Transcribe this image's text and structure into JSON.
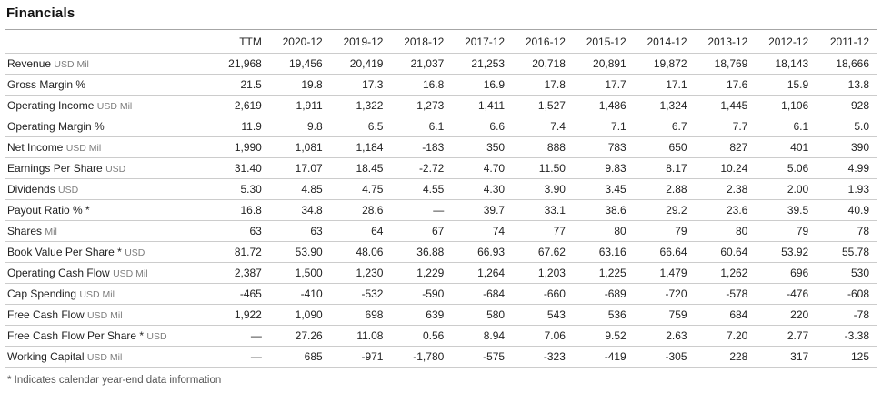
{
  "page": {
    "title": "Financials",
    "footnote": "* Indicates calendar year-end data information"
  },
  "table": {
    "columns": [
      "TTM",
      "2020-12",
      "2019-12",
      "2018-12",
      "2017-12",
      "2016-12",
      "2015-12",
      "2014-12",
      "2013-12",
      "2012-12",
      "2011-12"
    ],
    "rows": [
      {
        "label": "Revenue",
        "unit": "USD Mil",
        "values": [
          "21,968",
          "19,456",
          "20,419",
          "21,037",
          "21,253",
          "20,718",
          "20,891",
          "19,872",
          "18,769",
          "18,143",
          "18,666"
        ]
      },
      {
        "label": "Gross Margin %",
        "unit": "",
        "values": [
          "21.5",
          "19.8",
          "17.3",
          "16.8",
          "16.9",
          "17.8",
          "17.7",
          "17.1",
          "17.6",
          "15.9",
          "13.8"
        ]
      },
      {
        "label": "Operating Income",
        "unit": "USD Mil",
        "values": [
          "2,619",
          "1,911",
          "1,322",
          "1,273",
          "1,411",
          "1,527",
          "1,486",
          "1,324",
          "1,445",
          "1,106",
          "928"
        ]
      },
      {
        "label": "Operating Margin %",
        "unit": "",
        "values": [
          "11.9",
          "9.8",
          "6.5",
          "6.1",
          "6.6",
          "7.4",
          "7.1",
          "6.7",
          "7.7",
          "6.1",
          "5.0"
        ]
      },
      {
        "label": "Net Income",
        "unit": "USD Mil",
        "values": [
          "1,990",
          "1,081",
          "1,184",
          "-183",
          "350",
          "888",
          "783",
          "650",
          "827",
          "401",
          "390"
        ]
      },
      {
        "label": "Earnings Per Share",
        "unit": "USD",
        "values": [
          "31.40",
          "17.07",
          "18.45",
          "-2.72",
          "4.70",
          "11.50",
          "9.83",
          "8.17",
          "10.24",
          "5.06",
          "4.99"
        ]
      },
      {
        "label": "Dividends",
        "unit": "USD",
        "values": [
          "5.30",
          "4.85",
          "4.75",
          "4.55",
          "4.30",
          "3.90",
          "3.45",
          "2.88",
          "2.38",
          "2.00",
          "1.93"
        ]
      },
      {
        "label": "Payout Ratio % *",
        "unit": "",
        "values": [
          "16.8",
          "34.8",
          "28.6",
          "—",
          "39.7",
          "33.1",
          "38.6",
          "29.2",
          "23.6",
          "39.5",
          "40.9"
        ]
      },
      {
        "label": "Shares",
        "unit": "Mil",
        "values": [
          "63",
          "63",
          "64",
          "67",
          "74",
          "77",
          "80",
          "79",
          "80",
          "79",
          "78"
        ]
      },
      {
        "label": "Book Value Per Share *",
        "unit": "USD",
        "values": [
          "81.72",
          "53.90",
          "48.06",
          "36.88",
          "66.93",
          "67.62",
          "63.16",
          "66.64",
          "60.64",
          "53.92",
          "55.78"
        ]
      },
      {
        "label": "Operating Cash Flow",
        "unit": "USD Mil",
        "values": [
          "2,387",
          "1,500",
          "1,230",
          "1,229",
          "1,264",
          "1,203",
          "1,225",
          "1,479",
          "1,262",
          "696",
          "530"
        ]
      },
      {
        "label": "Cap Spending",
        "unit": "USD Mil",
        "values": [
          "-465",
          "-410",
          "-532",
          "-590",
          "-684",
          "-660",
          "-689",
          "-720",
          "-578",
          "-476",
          "-608"
        ]
      },
      {
        "label": "Free Cash Flow",
        "unit": "USD Mil",
        "values": [
          "1,922",
          "1,090",
          "698",
          "639",
          "580",
          "543",
          "536",
          "759",
          "684",
          "220",
          "-78"
        ]
      },
      {
        "label": "Free Cash Flow Per Share *",
        "unit": "USD",
        "values": [
          "—",
          "27.26",
          "11.08",
          "0.56",
          "8.94",
          "7.06",
          "9.52",
          "2.63",
          "7.20",
          "2.77",
          "-3.38"
        ]
      },
      {
        "label": "Working Capital",
        "unit": "USD Mil",
        "values": [
          "—",
          "685",
          "-971",
          "-1,780",
          "-575",
          "-323",
          "-419",
          "-305",
          "228",
          "317",
          "125"
        ]
      }
    ]
  },
  "colors": {
    "text": "#222222",
    "unit_text": "#7d7d7d",
    "footnote_text": "#555555",
    "row_border": "#cccccc",
    "header_top_border": "#a6a6a6",
    "background": "#ffffff"
  }
}
